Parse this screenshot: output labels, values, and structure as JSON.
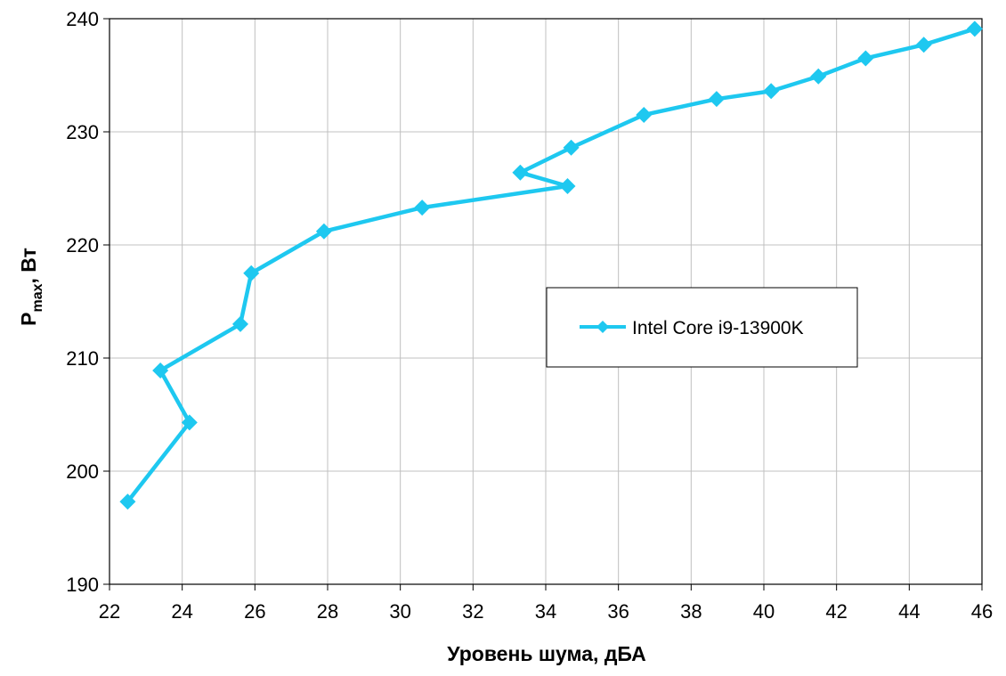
{
  "chart_data": {
    "type": "line",
    "title": "",
    "xlabel": "Уровень шума, дБА",
    "ylabel": {
      "base": "P",
      "sub": "max",
      "rest": ", Вт"
    },
    "xlim": [
      22,
      46
    ],
    "ylim": [
      190,
      240
    ],
    "x_ticks": [
      22,
      24,
      26,
      28,
      30,
      32,
      34,
      36,
      38,
      40,
      42,
      44,
      46
    ],
    "y_ticks": [
      190,
      200,
      210,
      220,
      230,
      240
    ],
    "grid": true,
    "legend_position": "center-right",
    "series": [
      {
        "name": "Intel Core i9-13900K",
        "color": "#1ec8f0",
        "marker": "diamond",
        "x": [
          22.5,
          24.2,
          23.4,
          25.6,
          25.9,
          27.9,
          30.6,
          34.6,
          33.3,
          34.7,
          36.7,
          38.7,
          40.2,
          41.5,
          42.8,
          44.4,
          45.8
        ],
        "y": [
          197.3,
          204.3,
          208.9,
          213.0,
          217.5,
          221.2,
          223.3,
          225.2,
          226.4,
          228.6,
          231.5,
          232.9,
          233.6,
          234.9,
          236.5,
          237.7,
          239.1
        ]
      }
    ]
  }
}
